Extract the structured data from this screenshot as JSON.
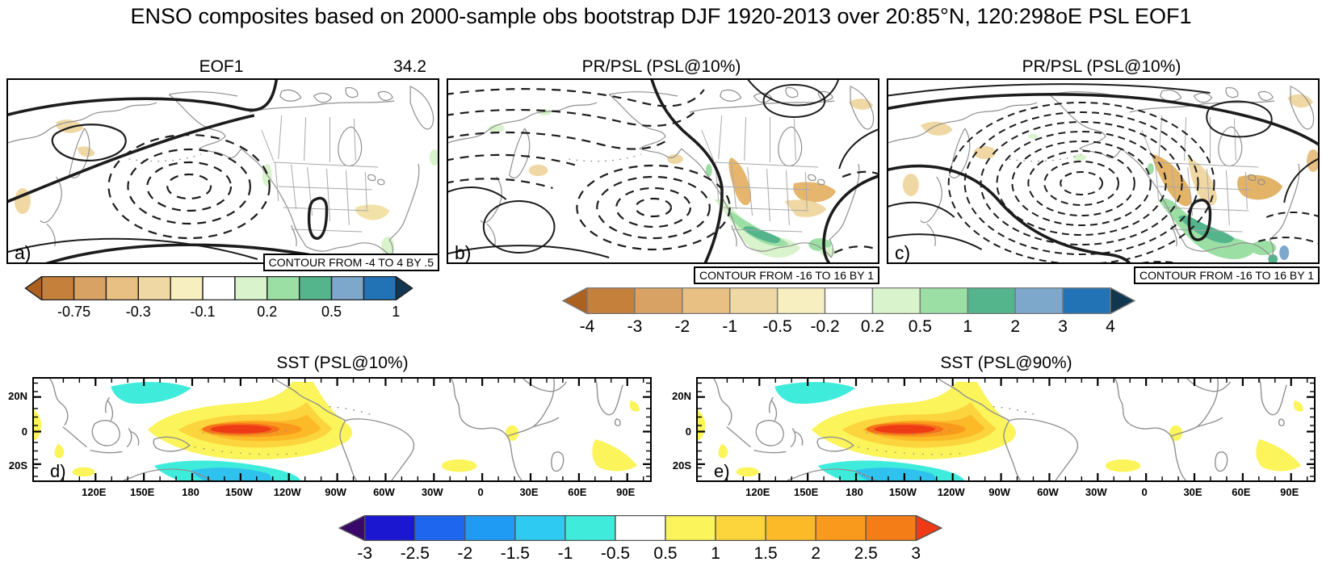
{
  "figure": {
    "title": "ENSO composites based on 2000-sample obs bootstrap DJF 1920-2013 over 20:85°N, 120:298oE PSL EOF1"
  },
  "panels": {
    "a": {
      "label": "a)",
      "title": "EOF1",
      "value": "34.2",
      "contour_note": "CONTOUR FROM -4 TO 4 BY .5"
    },
    "b": {
      "label": "b)",
      "title": "PR/PSL (PSL@10%)",
      "contour_note": "CONTOUR FROM -16 TO 16 BY 1"
    },
    "c": {
      "label": "c)",
      "title": "PR/PSL (PSL@10%)",
      "contour_note": "CONTOUR FROM -16 TO 16 BY 1"
    },
    "d": {
      "label": "d)",
      "title": "SST (PSL@10%)"
    },
    "e": {
      "label": "e)",
      "title": "SST (PSL@90%)"
    }
  },
  "axes": {
    "x_labels": [
      "120E",
      "150E",
      "180",
      "150W",
      "120W",
      "90W",
      "60W",
      "30W",
      "0",
      "30E",
      "60E",
      "90E"
    ],
    "x_start_pct": 10.0,
    "x_step_pct": 7.845,
    "y_labels": [
      "20N",
      "0",
      "20S"
    ],
    "y_pcts": [
      18,
      52,
      84
    ]
  },
  "colorbars": {
    "eof": {
      "border": "#222222",
      "left_arrow": "#ad6120",
      "segments": [
        "#c5803b",
        "#d8a265",
        "#e8c084",
        "#f0d8a4",
        "#f8efc0",
        "#ffffff",
        "#d9f3cc",
        "#9cdfa4",
        "#54b58c",
        "#7ea7cc",
        "#2273b5"
      ],
      "right_arrow": "#10374f",
      "labels": [
        "-0.75",
        "-0.3",
        "-0.1",
        "0.2",
        "0.5",
        "1"
      ],
      "label_boundaries": [
        1,
        3,
        5,
        7,
        9,
        11
      ]
    },
    "pr": {
      "border": "#777777",
      "left_arrow": "#ad6120",
      "segments": [
        "#c5803b",
        "#d8a265",
        "#e8c084",
        "#f0d8a4",
        "#f8efc0",
        "#ffffff",
        "#d9f3cc",
        "#9cdfa4",
        "#54b58c",
        "#7ea7cc",
        "#2273b5"
      ],
      "right_arrow": "#10374f",
      "labels": [
        "-4",
        "-3",
        "-2",
        "-1",
        "-0.5",
        "-0.2",
        "0.2",
        "0.5",
        "1",
        "2",
        "3",
        "4"
      ],
      "label_boundaries": [
        0,
        1,
        2,
        3,
        4,
        5,
        6,
        7,
        8,
        9,
        10,
        11
      ]
    },
    "sst": {
      "border": "#555555",
      "left_arrow": "#38096b",
      "segments": [
        "#1b17d0",
        "#1f66ee",
        "#209bf4",
        "#2ecaf2",
        "#3fecdb",
        "#ffffff",
        "#fbf45a",
        "#fcd53d",
        "#fcba28",
        "#fa9a1d",
        "#f57d18"
      ],
      "right_arrow": "#ee3a15",
      "labels": [
        "-3",
        "-2.5",
        "-2",
        "-1.5",
        "-1",
        "-0.5",
        "0.5",
        "1",
        "1.5",
        "2",
        "2.5",
        "3"
      ],
      "label_boundaries": [
        0,
        1,
        2,
        3,
        4,
        5,
        6,
        7,
        8,
        9,
        10,
        11
      ]
    }
  },
  "map_colors": {
    "coastline": "#8f8f8f",
    "contour": "#1c1c1c",
    "warm_core": "#ee3a15",
    "cold_shade": "#3fecdb"
  },
  "chart_data": [
    {
      "id": "a",
      "type": "heatmap",
      "title": "EOF1",
      "right_value": 34.2,
      "contour_note": "CONTOUR FROM -4 TO 4 BY .5",
      "contour_range": [
        -4,
        4
      ],
      "contour_interval": 0.5,
      "colorbar_ticks": [
        -0.75,
        -0.3,
        -0.1,
        0.2,
        0.5,
        1
      ],
      "description": "EOF1 of DJF PSL over 20:85N, 120:298E; dashed negative contour cell centered on the North Pacific (Aleutian low), thick zero lines, light tan/green precipitation shading over North America"
    },
    {
      "id": "b",
      "type": "heatmap",
      "title": "PR/PSL (PSL@10%)",
      "contour_note": "CONTOUR FROM -16 TO 16 BY 1",
      "contour_range": [
        -16,
        16
      ],
      "contour_interval": 1,
      "colorbar_ticks": [
        -4,
        -3,
        -2,
        -1,
        -0.5,
        -0.2,
        0.2,
        0.5,
        1,
        2,
        3,
        4
      ],
      "description": "PR composite with PSL contours at 10% tail: moderate dashed low over North Pacific, dry (tan) western Canada / northern US, wet (green) Mexico and Gulf coast"
    },
    {
      "id": "c",
      "type": "heatmap",
      "title": "PR/PSL (PSL@10%)",
      "contour_note": "CONTOUR FROM -16 TO 16 BY 1",
      "contour_range": [
        -16,
        16
      ],
      "contour_interval": 1,
      "colorbar_ticks": [
        -4,
        -3,
        -2,
        -1,
        -0.5,
        -0.2,
        0.2,
        0.5,
        1,
        2,
        3,
        4
      ],
      "description": "Deep dashed closed low (many concentric negative contours) over the North Pacific; stronger dry anomalies across Canada and wet anomalies over Mexico/southern US"
    },
    {
      "id": "d",
      "type": "heatmap",
      "title": "SST (PSL@10%)",
      "x_ticks": [
        "120E",
        "150E",
        "180",
        "150W",
        "120W",
        "90W",
        "60W",
        "30W",
        "0",
        "30E",
        "60E",
        "90E"
      ],
      "y_ticks": [
        "20N",
        "0",
        "20S"
      ],
      "colorbar_ticks": [
        -3,
        -2.5,
        -2,
        -1.5,
        -1,
        -0.5,
        0.5,
        1,
        1.5,
        2,
        2.5,
        3
      ],
      "description": "El Nino SST anomaly composite: warm tongue up to ~+3 along equatorial central/east Pacific (150W-120W core), cool horseshoe (~-1) NW and SW of it, weak warm patches in Indian and Atlantic oceans"
    },
    {
      "id": "e",
      "type": "heatmap",
      "title": "SST (PSL@90%)",
      "x_ticks": [
        "120E",
        "150E",
        "180",
        "150W",
        "120W",
        "90W",
        "60W",
        "30W",
        "0",
        "30E",
        "60E",
        "90E"
      ],
      "y_ticks": [
        "20N",
        "0",
        "20S"
      ],
      "colorbar_ticks": [
        -3,
        -2.5,
        -2,
        -1.5,
        -1,
        -0.5,
        0.5,
        1,
        1.5,
        2,
        2.5,
        3
      ],
      "description": "Same El Nino warm-tongue SST anomaly pattern for the 90% PSL tail; nearly identical shading to panel d"
    }
  ]
}
